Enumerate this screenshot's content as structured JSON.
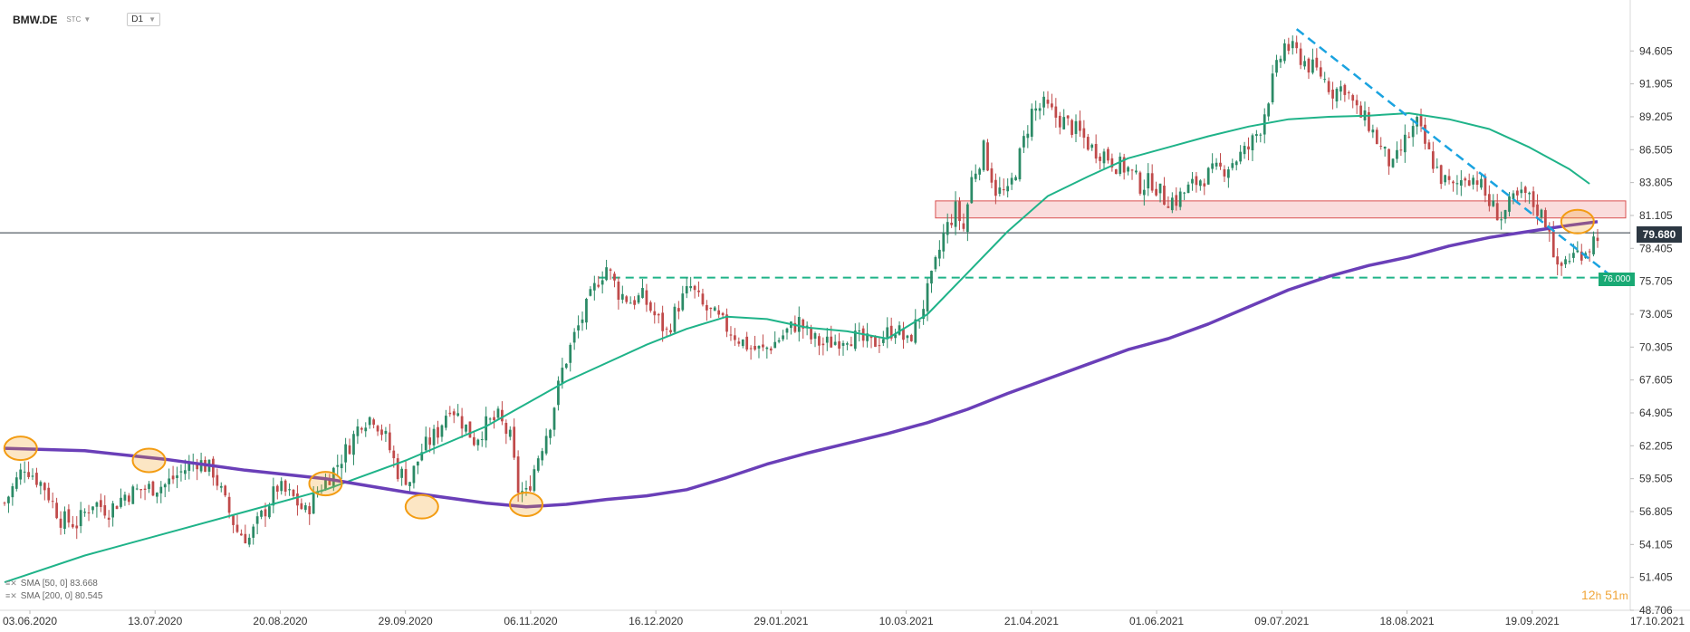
{
  "header": {
    "symbol": "BMW.DE",
    "sub": "STC",
    "timeframe": "D1"
  },
  "indicators": [
    {
      "label": "SMA [50, 0] 83.668",
      "color": "#1fb389"
    },
    {
      "label": "SMA [200, 0] 80.545",
      "color": "#6a3fb8"
    }
  ],
  "timer": {
    "hours": "12",
    "h_unit": "h",
    "minutes": "51",
    "m_unit": "m"
  },
  "price_tag": "79.680",
  "level_tag": "76.000",
  "chart_data": {
    "type": "candlestick",
    "y_axis_ticks": [
      "94.605",
      "91.905",
      "89.205",
      "86.505",
      "83.805",
      "81.105",
      "78.405",
      "75.705",
      "73.005",
      "70.305",
      "67.605",
      "64.905",
      "62.205",
      "59.505",
      "56.805",
      "54.105",
      "51.405",
      "48.706"
    ],
    "x_axis_ticks": [
      "03.06.2020",
      "13.07.2020",
      "20.08.2020",
      "29.09.2020",
      "06.11.2020",
      "16.12.2020",
      "29.01.2021",
      "10.03.2021",
      "21.04.2021",
      "01.06.2021",
      "09.07.2021",
      "18.08.2021",
      "19.09.2021",
      "17.10.2021"
    ],
    "ylim": [
      48.706,
      97.3
    ],
    "last_price": 79.68,
    "horizontal_level": 76.0,
    "resistance_zone": [
      80.9,
      82.3
    ],
    "close_path": [
      [
        0,
        57.5
      ],
      [
        5,
        60.6
      ],
      [
        10,
        58.8
      ],
      [
        14,
        56.2
      ],
      [
        18,
        55.8
      ],
      [
        22,
        57.6
      ],
      [
        26,
        56.9
      ],
      [
        30,
        58.2
      ],
      [
        34,
        58.6
      ],
      [
        40,
        59.0
      ],
      [
        45,
        60.3
      ],
      [
        48,
        61.0
      ],
      [
        52,
        60.1
      ],
      [
        55,
        57.5
      ],
      [
        58,
        55.2
      ],
      [
        61,
        54.6
      ],
      [
        65,
        57.0
      ],
      [
        68,
        58.8
      ],
      [
        72,
        57.9
      ],
      [
        75,
        56.7
      ],
      [
        78,
        58.5
      ],
      [
        82,
        60.2
      ],
      [
        86,
        62.3
      ],
      [
        89,
        64.3
      ],
      [
        92,
        64.6
      ],
      [
        95,
        62.8
      ],
      [
        98,
        60.1
      ],
      [
        101,
        59.4
      ],
      [
        104,
        61.8
      ],
      [
        108,
        63.4
      ],
      [
        111,
        65.6
      ],
      [
        114,
        64.2
      ],
      [
        117,
        62.7
      ],
      [
        120,
        63.9
      ],
      [
        123,
        64.5
      ],
      [
        126,
        62.8
      ],
      [
        128,
        58.6
      ],
      [
        130,
        58.2
      ],
      [
        133,
        61.4
      ],
      [
        136,
        64.2
      ],
      [
        139,
        68.4
      ],
      [
        142,
        71.2
      ],
      [
        145,
        73.5
      ],
      [
        148,
        75.9
      ],
      [
        150,
        76.9
      ],
      [
        153,
        74.8
      ],
      [
        156,
        74.1
      ],
      [
        159,
        74.4
      ],
      [
        162,
        72.9
      ],
      [
        165,
        71.5
      ],
      [
        168,
        73.8
      ],
      [
        171,
        75.2
      ],
      [
        174,
        73.6
      ],
      [
        177,
        72.8
      ],
      [
        180,
        71.9
      ],
      [
        183,
        71.0
      ],
      [
        186,
        70.2
      ],
      [
        189,
        70.0
      ],
      [
        192,
        70.7
      ],
      [
        195,
        71.6
      ],
      [
        198,
        72.4
      ],
      [
        201,
        71.0
      ],
      [
        204,
        70.5
      ],
      [
        207,
        70.8
      ],
      [
        210,
        71.3
      ],
      [
        213,
        70.9
      ],
      [
        216,
        70.5
      ],
      [
        219,
        71.2
      ],
      [
        222,
        71.9
      ],
      [
        225,
        70.6
      ],
      [
        228,
        72.8
      ],
      [
        231,
        75.8
      ],
      [
        234,
        79.5
      ],
      [
        237,
        81.6
      ],
      [
        239,
        80.0
      ],
      [
        241,
        84.1
      ],
      [
        244,
        86.5
      ],
      [
        247,
        83.2
      ],
      [
        250,
        82.8
      ],
      [
        253,
        86.0
      ],
      [
        256,
        89.6
      ],
      [
        259,
        90.1
      ],
      [
        262,
        89.2
      ],
      [
        265,
        88.6
      ],
      [
        268,
        87.8
      ],
      [
        271,
        86.6
      ],
      [
        274,
        86.2
      ],
      [
        277,
        85.3
      ],
      [
        280,
        84.9
      ],
      [
        283,
        83.6
      ],
      [
        286,
        83.9
      ],
      [
        289,
        82.5
      ],
      [
        292,
        82.4
      ],
      [
        295,
        83.3
      ],
      [
        298,
        84.1
      ],
      [
        301,
        84.6
      ],
      [
        304,
        85.0
      ],
      [
        307,
        85.8
      ],
      [
        310,
        86.6
      ],
      [
        313,
        88.4
      ],
      [
        316,
        92.1
      ],
      [
        319,
        95.1
      ],
      [
        322,
        94.4
      ],
      [
        325,
        93.4
      ],
      [
        328,
        92.7
      ],
      [
        331,
        91.3
      ],
      [
        334,
        91.7
      ],
      [
        337,
        89.6
      ],
      [
        340,
        88.6
      ],
      [
        343,
        86.6
      ],
      [
        346,
        85.0
      ],
      [
        349,
        87.2
      ],
      [
        352,
        88.6
      ],
      [
        355,
        86.1
      ],
      [
        358,
        84.2
      ],
      [
        361,
        83.3
      ],
      [
        364,
        84.4
      ],
      [
        367,
        84.1
      ],
      [
        370,
        82.1
      ],
      [
        373,
        81.0
      ],
      [
        376,
        82.3
      ],
      [
        379,
        82.8
      ],
      [
        382,
        81.6
      ],
      [
        385,
        80.2
      ],
      [
        387,
        76.4
      ],
      [
        389,
        77.5
      ],
      [
        392,
        78.0
      ],
      [
        395,
        78.6
      ],
      [
        397,
        79.68
      ]
    ],
    "trendline": [
      [
        322,
        96.4
      ],
      [
        404,
        75.2
      ]
    ],
    "sma50_path": [
      [
        0,
        51.0
      ],
      [
        20,
        53.2
      ],
      [
        40,
        55.0
      ],
      [
        60,
        56.8
      ],
      [
        80,
        58.6
      ],
      [
        100,
        61.0
      ],
      [
        120,
        63.8
      ],
      [
        140,
        67.5
      ],
      [
        160,
        70.5
      ],
      [
        170,
        71.8
      ],
      [
        180,
        72.8
      ],
      [
        190,
        72.6
      ],
      [
        200,
        71.9
      ],
      [
        210,
        71.6
      ],
      [
        220,
        71.0
      ],
      [
        230,
        73.0
      ],
      [
        240,
        76.4
      ],
      [
        250,
        79.8
      ],
      [
        260,
        82.7
      ],
      [
        270,
        84.3
      ],
      [
        280,
        85.8
      ],
      [
        290,
        86.7
      ],
      [
        300,
        87.6
      ],
      [
        310,
        88.4
      ],
      [
        320,
        89.0
      ],
      [
        330,
        89.2
      ],
      [
        340,
        89.3
      ],
      [
        350,
        89.5
      ],
      [
        360,
        89.0
      ],
      [
        370,
        88.2
      ],
      [
        380,
        86.7
      ],
      [
        390,
        84.9
      ],
      [
        395,
        83.7
      ]
    ],
    "sma200_path": [
      [
        0,
        62.0
      ],
      [
        20,
        61.8
      ],
      [
        40,
        61.1
      ],
      [
        60,
        60.2
      ],
      [
        80,
        59.5
      ],
      [
        100,
        58.4
      ],
      [
        120,
        57.5
      ],
      [
        130,
        57.2
      ],
      [
        140,
        57.4
      ],
      [
        150,
        57.8
      ],
      [
        160,
        58.1
      ],
      [
        170,
        58.6
      ],
      [
        180,
        59.6
      ],
      [
        190,
        60.7
      ],
      [
        200,
        61.6
      ],
      [
        210,
        62.4
      ],
      [
        220,
        63.2
      ],
      [
        230,
        64.1
      ],
      [
        240,
        65.2
      ],
      [
        250,
        66.5
      ],
      [
        260,
        67.7
      ],
      [
        270,
        68.9
      ],
      [
        280,
        70.1
      ],
      [
        290,
        71.0
      ],
      [
        300,
        72.2
      ],
      [
        310,
        73.6
      ],
      [
        320,
        75.0
      ],
      [
        330,
        76.1
      ],
      [
        340,
        77.0
      ],
      [
        350,
        77.7
      ],
      [
        360,
        78.6
      ],
      [
        370,
        79.3
      ],
      [
        380,
        79.8
      ],
      [
        390,
        80.3
      ],
      [
        397,
        80.6
      ]
    ],
    "markers": [
      {
        "x": 4,
        "y": 62.0
      },
      {
        "x": 36,
        "y": 61.0
      },
      {
        "x": 80,
        "y": 59.1
      },
      {
        "x": 104,
        "y": 57.2
      },
      {
        "x": 130,
        "y": 57.4
      },
      {
        "x": 392,
        "y": 80.6
      }
    ],
    "colors": {
      "up": "#2b8a66",
      "down": "#c04a4a",
      "sma50": "#1fb389",
      "sma200": "#6a3fb8",
      "trend": "#1aa3e0",
      "level": "#1fb389",
      "zone": "#f8c9c9",
      "zone_border": "#d95050",
      "marker": "#f39c12",
      "price_line": "#2c3742"
    }
  }
}
